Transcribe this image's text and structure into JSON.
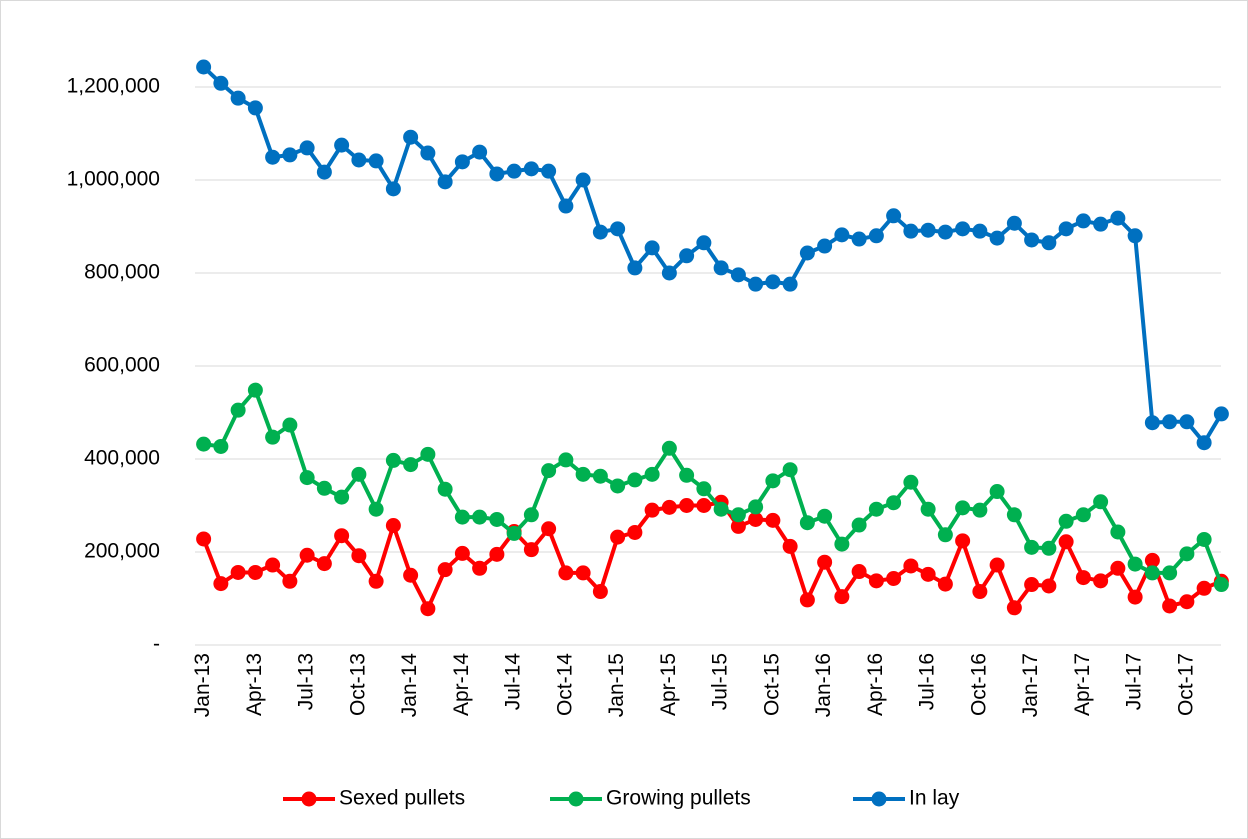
{
  "chart_data": {
    "type": "line",
    "categories": [
      "Jan-13",
      null,
      null,
      "Apr-13",
      null,
      null,
      "Jul-13",
      null,
      null,
      "Oct-13",
      null,
      null,
      "Jan-14",
      null,
      null,
      "Apr-14",
      null,
      null,
      "Jul-14",
      null,
      null,
      "Oct-14",
      null,
      null,
      "Jan-15",
      null,
      null,
      "Apr-15",
      null,
      null,
      "Jul-15",
      null,
      null,
      "Oct-15",
      null,
      null,
      "Jan-16",
      null,
      null,
      "Apr-16",
      null,
      null,
      "Jul-16",
      null,
      null,
      "Oct-16",
      null,
      null,
      "Jan-17",
      null,
      null,
      "Apr-17",
      null,
      null,
      "Jul-17",
      null,
      null,
      "Oct-17",
      null,
      null
    ],
    "series": [
      {
        "name": "Sexed pullets",
        "color": "#ff0000",
        "values": [
          228000,
          132000,
          156000,
          156000,
          172000,
          137000,
          193000,
          175000,
          235000,
          192000,
          137000,
          257000,
          150000,
          78000,
          162000,
          197000,
          165000,
          195000,
          244000,
          205000,
          250000,
          155000,
          155000,
          115000,
          232000,
          242000,
          290000,
          296000,
          300000,
          300000,
          307000,
          255000,
          270000,
          268000,
          212000,
          97000,
          178000,
          104000,
          158000,
          138000,
          143000,
          170000,
          152000,
          131000,
          224000,
          115000,
          172000,
          80000,
          130000,
          127000,
          222000,
          145000,
          138000,
          165000,
          103000,
          182000,
          84000,
          93000,
          122000,
          137000
        ]
      },
      {
        "name": "Growing pullets",
        "color": "#00b050",
        "values": [
          432000,
          427000,
          505000,
          548000,
          447000,
          473000,
          360000,
          337000,
          318000,
          367000,
          292000,
          397000,
          388000,
          410000,
          335000,
          275000,
          275000,
          270000,
          240000,
          280000,
          375000,
          398000,
          367000,
          363000,
          342000,
          355000,
          367000,
          423000,
          365000,
          336000,
          292000,
          280000,
          297000,
          353000,
          377000,
          263000,
          277000,
          217000,
          258000,
          292000,
          306000,
          350000,
          292000,
          237000,
          295000,
          290000,
          330000,
          280000,
          210000,
          208000,
          266000,
          280000,
          308000,
          243000,
          174000,
          155000,
          155000,
          196000,
          227000,
          130000
        ]
      },
      {
        "name": "In lay",
        "color": "#0070c0",
        "values": [
          1243000,
          1208000,
          1176000,
          1155000,
          1049000,
          1054000,
          1069000,
          1017000,
          1075000,
          1043000,
          1041000,
          981000,
          1092000,
          1058000,
          996000,
          1039000,
          1060000,
          1013000,
          1019000,
          1024000,
          1019000,
          944000,
          1000000,
          888000,
          895000,
          811000,
          854000,
          800000,
          837000,
          865000,
          811000,
          796000,
          776000,
          781000,
          776000,
          843000,
          858000,
          882000,
          873000,
          880000,
          923000,
          890000,
          892000,
          888000,
          895000,
          890000,
          875000,
          907000,
          871000,
          865000,
          895000,
          912000,
          905000,
          918000,
          880000,
          478000,
          480000,
          480000,
          435000,
          497000
        ]
      }
    ],
    "ylim": [
      0,
      1300000
    ],
    "yticks": [
      {
        "value": 0,
        "label": "-"
      },
      {
        "value": 200000,
        "label": "200,000"
      },
      {
        "value": 400000,
        "label": "400,000"
      },
      {
        "value": 600000,
        "label": "600,000"
      },
      {
        "value": 800000,
        "label": "800,000"
      },
      {
        "value": 1000000,
        "label": "1,000,000"
      },
      {
        "value": 1200000,
        "label": "1,200,000"
      }
    ],
    "grid": true,
    "legend": "bottom"
  }
}
